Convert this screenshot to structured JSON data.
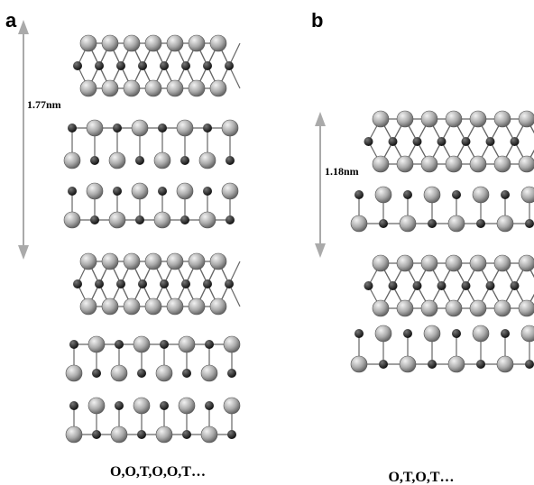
{
  "panels": [
    {
      "label": "a",
      "spacing": "1.77nm",
      "caption": "O,O,T,O,O,T…"
    },
    {
      "label": "b",
      "spacing": "1.18nm",
      "caption": "O,T,O,T…"
    }
  ]
}
